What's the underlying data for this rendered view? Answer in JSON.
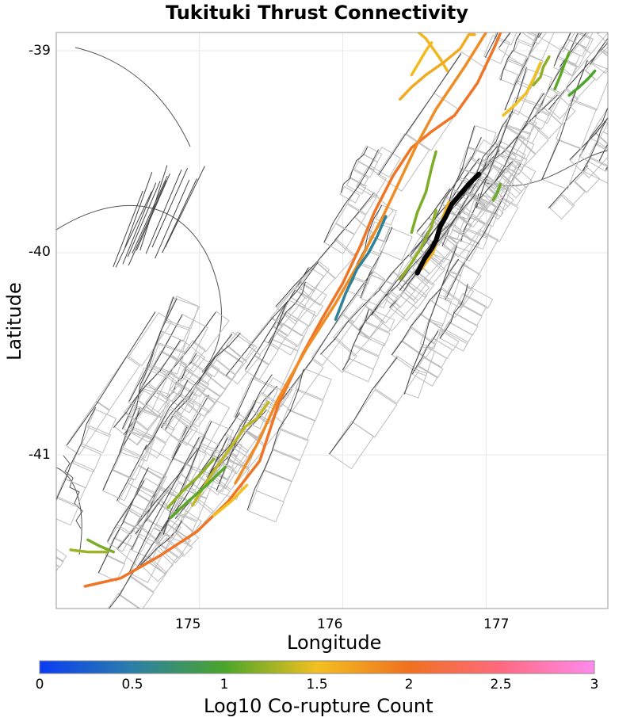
{
  "title": "Tukituki Thrust Connectivity",
  "x_axis": {
    "label": "Longitude",
    "ticks": [
      "175",
      "176",
      "177"
    ]
  },
  "y_axis": {
    "label": "Latitude",
    "ticks": [
      "-39",
      "-40",
      "-41"
    ]
  },
  "colorbar": {
    "label": "Log10 Co-rupture Count",
    "ticks": [
      "0",
      "0.5",
      "1",
      "1.5",
      "2",
      "2.5",
      "3"
    ],
    "stops": [
      "#0a3cf5",
      "#2b7fa8",
      "#4aa52a",
      "#f2c020",
      "#f07020",
      "#ff6a80",
      "#ff8aee"
    ]
  },
  "colors": {
    "source_fault": "#000000",
    "co_rupture_high": "#f08a24",
    "co_rupture_mid": "#f5c22b",
    "co_rupture_low": "#9bbf20",
    "co_rupture_lower": "#4a9a3c",
    "co_rupture_teal": "#2176a0",
    "fault_trace": "#444444",
    "fault_surface": "#bdbdbd",
    "coastline": "#555555"
  },
  "chart_data": {
    "type": "map",
    "title": "Tukituki Thrust Connectivity",
    "xlabel": "Longitude",
    "ylabel": "Latitude",
    "xlim": [
      174.0,
      177.85
    ],
    "ylim": [
      -41.76,
      -38.91
    ],
    "colorbar": {
      "label": "Log10 Co-rupture Count",
      "range": [
        0,
        3
      ]
    },
    "source_fault": {
      "name": "Tukituki Thrust",
      "lon": [
        176.52,
        176.57,
        176.62,
        176.65,
        176.68,
        176.72,
        176.76,
        176.82,
        176.88,
        176.95
      ],
      "lat": [
        -40.1,
        -40.03,
        -39.98,
        -39.94,
        -39.87,
        -39.82,
        -39.76,
        -39.71,
        -39.66,
        -39.61
      ]
    },
    "co_rupture_faults": [
      {
        "log10_count": 2.2,
        "lon": [
          174.2,
          174.45,
          174.72,
          174.98,
          175.2,
          175.42,
          175.55,
          175.72,
          175.86,
          176.0,
          176.12,
          176.22,
          176.35,
          176.48,
          176.62,
          176.78,
          176.94,
          177.06,
          177.12
        ],
        "lat": [
          -41.65,
          -41.61,
          -41.5,
          -41.38,
          -41.23,
          -41.03,
          -40.75,
          -40.5,
          -40.32,
          -40.15,
          -39.97,
          -39.8,
          -39.62,
          -39.48,
          -39.4,
          -39.32,
          -39.16,
          -38.98,
          -38.88
        ]
      },
      {
        "log10_count": 2.0,
        "lon": [
          175.25,
          175.4,
          175.55,
          175.75,
          175.95,
          176.12,
          176.28,
          176.42,
          176.52,
          176.65,
          176.85,
          177.0
        ],
        "lat": [
          -41.14,
          -40.95,
          -40.72,
          -40.47,
          -40.25,
          -40.04,
          -39.82,
          -39.61,
          -39.46,
          -39.29,
          -39.08,
          -38.91
        ]
      },
      {
        "log10_count": 1.6,
        "lon": [
          176.53,
          176.58,
          176.63,
          176.68,
          176.73
        ],
        "lat": [
          -38.91,
          -38.94,
          -38.99,
          -39.04,
          -39.1
        ]
      },
      {
        "log10_count": 1.55,
        "lon": [
          176.48,
          176.53,
          176.58,
          176.62
        ],
        "lat": [
          -39.12,
          -39.06,
          -39.0,
          -38.96
        ]
      },
      {
        "log10_count": 1.7,
        "lon": [
          176.4,
          176.48,
          176.58,
          176.7,
          176.82,
          176.88,
          176.92
        ],
        "lat": [
          -39.24,
          -39.18,
          -39.12,
          -39.06,
          -38.99,
          -38.92,
          -38.92
        ]
      },
      {
        "log10_count": 1.5,
        "lon": [
          177.12,
          177.2,
          177.28,
          177.33,
          177.38
        ],
        "lat": [
          -39.32,
          -39.27,
          -39.21,
          -39.14,
          -39.06
        ]
      },
      {
        "log10_count": 1.2,
        "lon": [
          177.33,
          177.38,
          177.4,
          177.44
        ],
        "lat": [
          -39.17,
          -39.13,
          -39.08,
          -39.03
        ]
      },
      {
        "log10_count": 1.05,
        "lon": [
          177.48,
          177.52,
          177.55,
          177.58
        ],
        "lat": [
          -39.19,
          -39.12,
          -39.06,
          -39.01
        ]
      },
      {
        "log10_count": 1.0,
        "lon": [
          177.58,
          177.65,
          177.71,
          177.76
        ],
        "lat": [
          -39.22,
          -39.18,
          -39.14,
          -39.1
        ]
      },
      {
        "log10_count": 1.1,
        "lon": [
          177.05,
          177.08,
          177.1
        ],
        "lat": [
          -39.74,
          -39.7,
          -39.66
        ]
      },
      {
        "log10_count": 1.65,
        "lon": [
          176.55,
          176.63,
          176.67,
          176.7,
          176.74
        ],
        "lat": [
          -40.08,
          -40.0,
          -39.91,
          -39.82,
          -39.75
        ]
      },
      {
        "log10_count": 1.2,
        "lon": [
          176.4,
          176.48,
          176.55,
          176.62,
          176.65
        ],
        "lat": [
          -40.13,
          -40.05,
          -39.97,
          -39.87,
          -39.79
        ]
      },
      {
        "log10_count": 1.15,
        "lon": [
          176.48,
          176.52,
          176.58,
          176.62,
          176.65
        ],
        "lat": [
          -39.9,
          -39.8,
          -39.7,
          -39.58,
          -39.5
        ]
      },
      {
        "log10_count": 0.55,
        "lon": [
          175.95,
          176.02,
          176.1,
          176.18,
          176.24,
          176.3
        ],
        "lat": [
          -40.33,
          -40.2,
          -40.08,
          -40.0,
          -39.92,
          -39.82
        ]
      },
      {
        "log10_count": 1.35,
        "lon": [
          174.95,
          175.08,
          175.22,
          175.32,
          175.4,
          175.48
        ],
        "lat": [
          -41.25,
          -41.1,
          -40.96,
          -40.86,
          -40.82,
          -40.74
        ]
      },
      {
        "log10_count": 1.2,
        "lon": [
          174.78,
          174.88,
          175.0,
          175.1
        ],
        "lat": [
          -41.26,
          -41.18,
          -41.1,
          -41.02
        ]
      },
      {
        "log10_count": 1.05,
        "lon": [
          174.8,
          174.92,
          175.05,
          175.18
        ],
        "lat": [
          -41.31,
          -41.23,
          -41.15,
          -41.06
        ]
      },
      {
        "log10_count": 1.5,
        "lon": [
          175.1,
          175.22,
          175.33
        ],
        "lat": [
          -41.3,
          -41.23,
          -41.15
        ]
      },
      {
        "log10_count": 1.25,
        "lon": [
          174.1,
          174.22,
          174.35
        ],
        "lat": [
          -41.47,
          -41.48,
          -41.48
        ]
      },
      {
        "log10_count": 1.15,
        "lon": [
          174.22,
          174.3,
          174.4
        ],
        "lat": [
          -41.42,
          -41.45,
          -41.48
        ]
      }
    ]
  }
}
